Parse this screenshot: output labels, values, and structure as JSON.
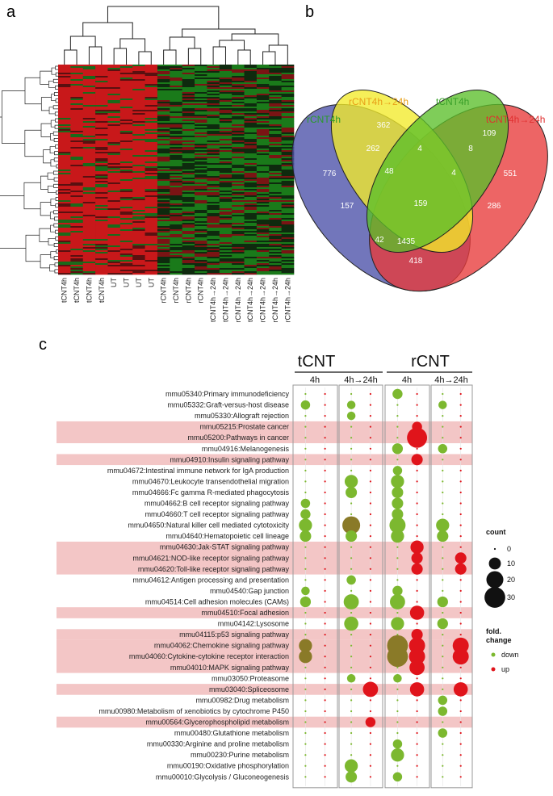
{
  "panels": {
    "a": "a",
    "b": "b",
    "c": "c"
  },
  "heatmap": {
    "sample_labels": [
      "tCNT4h",
      "tCNT4h",
      "tCNT4h",
      "tCNT4h",
      "UT",
      "UT",
      "UT",
      "UT",
      "rCNT4h",
      "rCNT4h",
      "rCNT4h",
      "rCNT4h",
      "tCNT4h→24h",
      "tCNT4h→24h",
      "rCNT4h→24h",
      "tCNT4h→24h",
      "rCNT4h→24h",
      "rCNT4h→24h",
      "rCNT4h→24h"
    ],
    "colors": {
      "high": "#d41a1a",
      "low": "#1c8a1c",
      "mid": "#111111"
    }
  },
  "venn": {
    "sets": [
      {
        "name": "rCNT4h",
        "color": "#4a4fa8",
        "text_color": "#2a9a2a"
      },
      {
        "name": "rCNT4h→24h",
        "color": "#f2ea2a",
        "text_color": "#e8a018"
      },
      {
        "name": "tCNT4h",
        "color": "#5bbf2a",
        "text_color": "#3aa02a"
      },
      {
        "name": "tCNT4h→24h",
        "color": "#e83a3a",
        "text_color": "#e03030"
      }
    ],
    "regions": [
      "362",
      "109",
      "776",
      "262",
      "4",
      "8",
      "551",
      "48",
      "4",
      "157",
      "159",
      "286",
      "42",
      "1435",
      "418"
    ]
  },
  "chart_data": {
    "type": "scatter",
    "title": "",
    "groups": [
      {
        "name": "tCNT",
        "subgroups": [
          "4h",
          "4h→24h"
        ]
      },
      {
        "name": "rCNT",
        "subgroups": [
          "4h",
          "4h→24h"
        ]
      }
    ],
    "pathways": [
      {
        "label": "mmu05340:Primary immunodeficiency",
        "highlight": false,
        "counts": [
          [
            1,
            1
          ],
          [
            1,
            1
          ],
          [
            7,
            1
          ],
          [
            1,
            1
          ]
        ]
      },
      {
        "label": "mmu05332:Graft-versus-host disease",
        "highlight": false,
        "counts": [
          [
            6,
            1
          ],
          [
            5,
            1
          ],
          [
            1,
            1
          ],
          [
            5,
            1
          ]
        ]
      },
      {
        "label": "mmu05330:Allograft rejection",
        "highlight": false,
        "counts": [
          [
            1,
            1
          ],
          [
            5,
            1
          ],
          [
            1,
            1
          ],
          [
            1,
            1
          ]
        ]
      },
      {
        "label": "mmu05215:Prostate cancer",
        "highlight": true,
        "counts": [
          [
            1,
            1
          ],
          [
            1,
            1
          ],
          [
            1,
            7
          ],
          [
            1,
            1
          ]
        ]
      },
      {
        "label": "mmu05200:Pathways in cancer",
        "highlight": true,
        "counts": [
          [
            1,
            1
          ],
          [
            1,
            1
          ],
          [
            1,
            28
          ],
          [
            1,
            1
          ]
        ]
      },
      {
        "label": "mmu04916:Melanogenesis",
        "highlight": false,
        "counts": [
          [
            1,
            1
          ],
          [
            1,
            1
          ],
          [
            8,
            1
          ],
          [
            6,
            1
          ]
        ]
      },
      {
        "label": "mmu04910:Insulin signaling pathway",
        "highlight": true,
        "counts": [
          [
            1,
            1
          ],
          [
            1,
            1
          ],
          [
            1,
            9
          ],
          [
            1,
            1
          ]
        ]
      },
      {
        "label": "mmu04672:Intestinal immune network for IgA production",
        "highlight": false,
        "counts": [
          [
            1,
            1
          ],
          [
            1,
            1
          ],
          [
            6,
            1
          ],
          [
            1,
            1
          ]
        ]
      },
      {
        "label": "mmu04670:Leukocyte transendothelial migration",
        "highlight": false,
        "counts": [
          [
            1,
            1
          ],
          [
            12,
            1
          ],
          [
            12,
            1
          ],
          [
            1,
            1
          ]
        ]
      },
      {
        "label": "mmu04666:Fc gamma R-mediated phagocytosis",
        "highlight": false,
        "counts": [
          [
            1,
            1
          ],
          [
            9,
            1
          ],
          [
            9,
            1
          ],
          [
            1,
            1
          ]
        ]
      },
      {
        "label": "mmu04662:B cell receptor signaling pathway",
        "highlight": false,
        "counts": [
          [
            6,
            1
          ],
          [
            1,
            1
          ],
          [
            9,
            1
          ],
          [
            1,
            1
          ]
        ]
      },
      {
        "label": "mmu04660:T cell receptor signaling pathway",
        "highlight": false,
        "counts": [
          [
            7,
            1
          ],
          [
            1,
            1
          ],
          [
            9,
            1
          ],
          [
            1,
            1
          ]
        ]
      },
      {
        "label": "mmu04650:Natural killer cell mediated cytotoxicity",
        "highlight": false,
        "counts": [
          [
            12,
            1
          ],
          [
            22,
            1
          ],
          [
            18,
            1
          ],
          [
            12,
            1
          ]
        ]
      },
      {
        "label": "mmu04640:Hematopoietic cell lineage",
        "highlight": false,
        "counts": [
          [
            9,
            1
          ],
          [
            9,
            1
          ],
          [
            12,
            1
          ],
          [
            9,
            1
          ]
        ]
      },
      {
        "label": "mmu04630:Jak-STAT signaling pathway",
        "highlight": true,
        "counts": [
          [
            1,
            1
          ],
          [
            1,
            1
          ],
          [
            1,
            12
          ],
          [
            1,
            1
          ]
        ]
      },
      {
        "label": "mmu04621:NOD-like receptor signaling pathway",
        "highlight": true,
        "counts": [
          [
            1,
            1
          ],
          [
            1,
            1
          ],
          [
            1,
            9
          ],
          [
            1,
            9
          ]
        ]
      },
      {
        "label": "mmu04620:Toll-like receptor signaling pathway",
        "highlight": true,
        "counts": [
          [
            1,
            1
          ],
          [
            1,
            1
          ],
          [
            1,
            9
          ],
          [
            1,
            9
          ]
        ]
      },
      {
        "label": "mmu04612:Antigen processing and presentation",
        "highlight": false,
        "counts": [
          [
            1,
            1
          ],
          [
            6,
            1
          ],
          [
            1,
            1
          ],
          [
            1,
            1
          ]
        ]
      },
      {
        "label": "mmu04540:Gap junction",
        "highlight": false,
        "counts": [
          [
            5,
            1
          ],
          [
            1,
            1
          ],
          [
            7,
            1
          ],
          [
            1,
            1
          ]
        ]
      },
      {
        "label": "mmu04514:Cell adhesion molecules (CAMs)",
        "highlight": false,
        "counts": [
          [
            8,
            1
          ],
          [
            16,
            1
          ],
          [
            16,
            1
          ],
          [
            8,
            1
          ]
        ]
      },
      {
        "label": "mmu04510:Focal adhesion",
        "highlight": true,
        "counts": [
          [
            1,
            1
          ],
          [
            1,
            1
          ],
          [
            1,
            14
          ],
          [
            1,
            1
          ]
        ]
      },
      {
        "label": "mmu04142:Lysosome",
        "highlight": false,
        "counts": [
          [
            1,
            1
          ],
          [
            14,
            1
          ],
          [
            12,
            1
          ],
          [
            8,
            1
          ]
        ]
      },
      {
        "label": "mmu04115:p53 signaling pathway",
        "highlight": true,
        "counts": [
          [
            1,
            1
          ],
          [
            1,
            1
          ],
          [
            1,
            9
          ],
          [
            1,
            1
          ]
        ]
      },
      {
        "label": "mmu04062:Chemokine signaling pathway",
        "highlight": true,
        "counts": [
          [
            12,
            1
          ],
          [
            1,
            1
          ],
          [
            30,
            18
          ],
          [
            1,
            18
          ]
        ]
      },
      {
        "label": "mmu04060:Cytokine-cytokine receptor interaction",
        "highlight": true,
        "counts": [
          [
            12,
            1
          ],
          [
            1,
            1
          ],
          [
            30,
            18
          ],
          [
            1,
            18
          ]
        ]
      },
      {
        "label": "mmu04010:MAPK signaling pathway",
        "highlight": true,
        "counts": [
          [
            1,
            1
          ],
          [
            1,
            1
          ],
          [
            1,
            16
          ],
          [
            1,
            1
          ]
        ]
      },
      {
        "label": "mmu03050:Proteasome",
        "highlight": false,
        "counts": [
          [
            1,
            1
          ],
          [
            5,
            1
          ],
          [
            5,
            1
          ],
          [
            1,
            1
          ]
        ]
      },
      {
        "label": "mmu03040:Spliceosome",
        "highlight": true,
        "counts": [
          [
            1,
            1
          ],
          [
            1,
            16
          ],
          [
            1,
            14
          ],
          [
            1,
            14
          ]
        ]
      },
      {
        "label": "mmu00982:Drug metabolism",
        "highlight": false,
        "counts": [
          [
            1,
            1
          ],
          [
            1,
            1
          ],
          [
            1,
            1
          ],
          [
            6,
            1
          ]
        ]
      },
      {
        "label": "mmu00980:Metabolism of xenobiotics by cytochrome P450",
        "highlight": false,
        "counts": [
          [
            1,
            1
          ],
          [
            1,
            1
          ],
          [
            1,
            1
          ],
          [
            6,
            1
          ]
        ]
      },
      {
        "label": "mmu00564:Glycerophospholipid metabolism",
        "highlight": true,
        "counts": [
          [
            1,
            1
          ],
          [
            1,
            7
          ],
          [
            1,
            1
          ],
          [
            1,
            1
          ]
        ]
      },
      {
        "label": "mmu00480:Glutathione metabolism",
        "highlight": false,
        "counts": [
          [
            1,
            1
          ],
          [
            1,
            1
          ],
          [
            1,
            1
          ],
          [
            6,
            1
          ]
        ]
      },
      {
        "label": "mmu00330:Arginine and proline metabolism",
        "highlight": false,
        "counts": [
          [
            1,
            1
          ],
          [
            1,
            1
          ],
          [
            6,
            1
          ],
          [
            1,
            1
          ]
        ]
      },
      {
        "label": "mmu00230:Purine metabolism",
        "highlight": false,
        "counts": [
          [
            1,
            1
          ],
          [
            1,
            1
          ],
          [
            12,
            1
          ],
          [
            1,
            1
          ]
        ]
      },
      {
        "label": "mmu00190:Oxidative phosphorylation",
        "highlight": false,
        "counts": [
          [
            1,
            1
          ],
          [
            12,
            1
          ],
          [
            1,
            1
          ],
          [
            1,
            1
          ]
        ]
      },
      {
        "label": "mmu00010:Glycolysis / Gluconeogenesis",
        "highlight": false,
        "counts": [
          [
            1,
            1
          ],
          [
            9,
            1
          ],
          [
            6,
            1
          ],
          [
            1,
            1
          ]
        ]
      }
    ],
    "legend": {
      "size_title": "count",
      "size_values": [
        "0",
        "10",
        "20",
        "30"
      ],
      "color_title_line1": "fold.",
      "color_title_line2": "change",
      "down_label": "down",
      "up_label": "up",
      "down_color": "#7cb82f",
      "up_color": "#e0141b",
      "overlap_color": "#8a7a28",
      "highlight_color": "#f3c6c6"
    }
  }
}
